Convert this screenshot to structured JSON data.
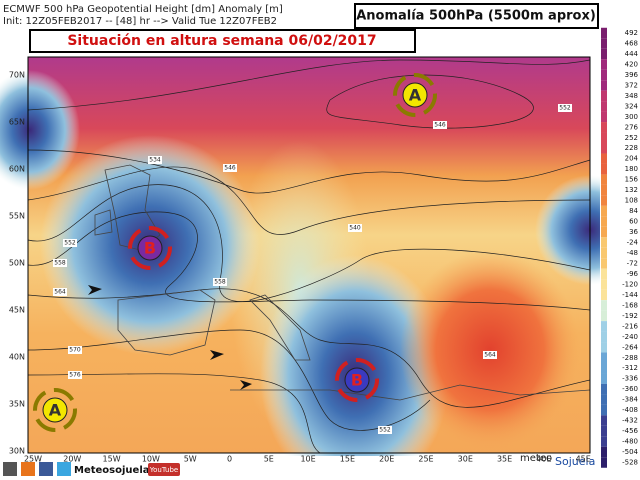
{
  "header": {
    "line1": "ECMWF 500 hPa Geopotential Height [dm] Anomaly [m]",
    "line2": "Init: 12Z05FEB2017 -- [48] hr --> Valid Tue 12Z07FEB2",
    "product": "Anomalía 500hPa (5500m aprox)"
  },
  "title": "Situación en altura semana 06/02/2017",
  "lat_labels": [
    "70N",
    "65N",
    "60N",
    "55N",
    "50N",
    "45N",
    "40N",
    "35N",
    "30N"
  ],
  "lon_labels": [
    "25W",
    "20W",
    "15W",
    "10W",
    "5W",
    "0",
    "5E",
    "10E",
    "15E",
    "20E",
    "25E",
    "30E",
    "35E",
    "40E",
    "45E"
  ],
  "colorbar_labels": [
    "492",
    "468",
    "444",
    "420",
    "396",
    "372",
    "348",
    "324",
    "300",
    "276",
    "252",
    "228",
    "204",
    "180",
    "156",
    "132",
    "108",
    "84",
    "60",
    "36",
    "-24",
    "-48",
    "-72",
    "-96",
    "-120",
    "-144",
    "-168",
    "-192",
    "-216",
    "-240",
    "-264",
    "-288",
    "-312",
    "-336",
    "-360",
    "-384",
    "-408",
    "-432",
    "-456",
    "-480",
    "-504",
    "-528"
  ],
  "centers": [
    {
      "label": "A"
    },
    {
      "label": "B"
    },
    {
      "label": "B"
    },
    {
      "label": "A"
    }
  ],
  "contour_labels": [
    "534",
    "546",
    "552",
    "558",
    "564",
    "570",
    "576",
    "540",
    "552",
    "546",
    "558",
    "564",
    "552"
  ],
  "footer": {
    "brand": "Meteosojuela",
    "youtube": "YouTube",
    "logo_top": "meteo",
    "logo_bottom": "Sojuela"
  }
}
